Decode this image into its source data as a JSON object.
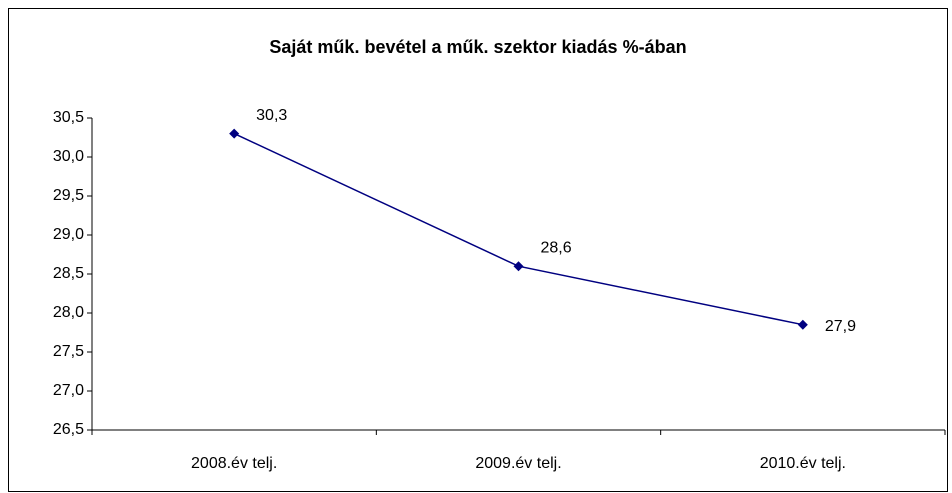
{
  "chart_data": {
    "type": "line",
    "title": "Saját műk. bevétel a műk. szektor kiadás %-ában",
    "categories": [
      "2008.év telj.",
      "2009.év telj.",
      "2010.év telj."
    ],
    "series": [
      {
        "color": "#000080",
        "values": [
          30.3,
          28.6,
          27.85
        ],
        "value_labels": [
          "30,3",
          "28,6",
          "27,9"
        ]
      }
    ],
    "ylim": [
      26.5,
      30.5
    ],
    "yticks": [
      {
        "value": 26.5,
        "label": "26,5"
      },
      {
        "value": 27.0,
        "label": "27,0"
      },
      {
        "value": 27.5,
        "label": "27,5"
      },
      {
        "value": 28.0,
        "label": "28,0"
      },
      {
        "value": 28.5,
        "label": "28,5"
      },
      {
        "value": 29.0,
        "label": "29,0"
      },
      {
        "value": 29.5,
        "label": "29,5"
      },
      {
        "value": 30.0,
        "label": "30,0"
      },
      {
        "value": 30.5,
        "label": "30,5"
      }
    ],
    "grid": false
  }
}
